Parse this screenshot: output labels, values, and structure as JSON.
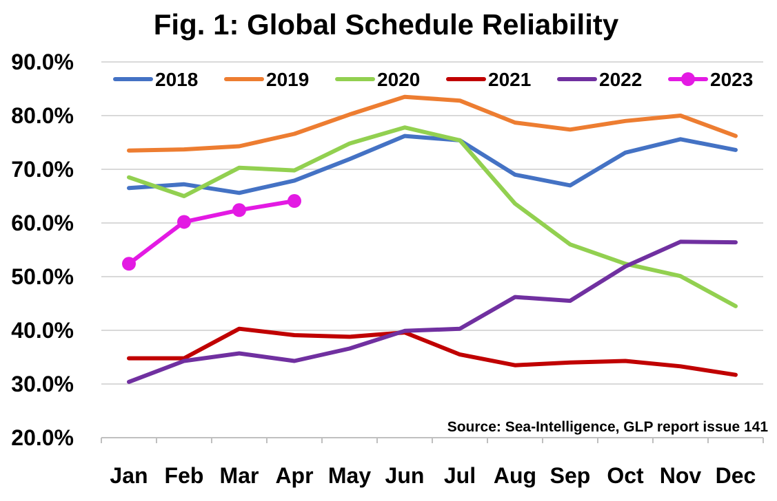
{
  "chart_data": {
    "type": "line",
    "title": "Fig. 1: Global Schedule Reliability",
    "xlabel": "",
    "ylabel": "",
    "categories": [
      "Jan",
      "Feb",
      "Mar",
      "Apr",
      "May",
      "Jun",
      "Jul",
      "Aug",
      "Sep",
      "Oct",
      "Nov",
      "Dec"
    ],
    "ylim": [
      20,
      90
    ],
    "yticks": [
      "20.0%",
      "30.0%",
      "40.0%",
      "50.0%",
      "60.0%",
      "70.0%",
      "80.0%",
      "90.0%"
    ],
    "grid": true,
    "legend_position": "top",
    "series": [
      {
        "name": "2018",
        "color": "#4472C4",
        "markers": false,
        "values": [
          66.5,
          67.2,
          65.6,
          67.9,
          71.9,
          76.2,
          75.4,
          69.0,
          67.0,
          73.1,
          75.6,
          73.6
        ]
      },
      {
        "name": "2019",
        "color": "#ED7D31",
        "markers": false,
        "values": [
          73.5,
          73.7,
          74.3,
          76.6,
          80.2,
          83.5,
          82.8,
          78.7,
          77.4,
          79.0,
          80.0,
          76.2
        ]
      },
      {
        "name": "2020",
        "color": "#92D050",
        "markers": false,
        "values": [
          68.5,
          65.0,
          70.3,
          69.8,
          74.8,
          77.8,
          75.4,
          63.6,
          56.0,
          52.4,
          50.1,
          44.5
        ]
      },
      {
        "name": "2021",
        "color": "#C00000",
        "markers": false,
        "values": [
          34.8,
          34.8,
          40.3,
          39.1,
          38.8,
          39.6,
          35.5,
          33.5,
          34.0,
          34.3,
          33.3,
          31.7
        ]
      },
      {
        "name": "2022",
        "color": "#7030A0",
        "markers": false,
        "values": [
          30.4,
          34.3,
          35.7,
          34.3,
          36.6,
          39.9,
          40.3,
          46.2,
          45.5,
          51.9,
          56.5,
          56.4
        ]
      },
      {
        "name": "2023",
        "color": "#E31AE3",
        "markers": true,
        "values": [
          52.4,
          60.2,
          62.4,
          64.1,
          null,
          null,
          null,
          null,
          null,
          null,
          null,
          null
        ]
      }
    ],
    "annotations": [
      "Source: Sea-Intelligence, GLP report issue 141"
    ]
  }
}
